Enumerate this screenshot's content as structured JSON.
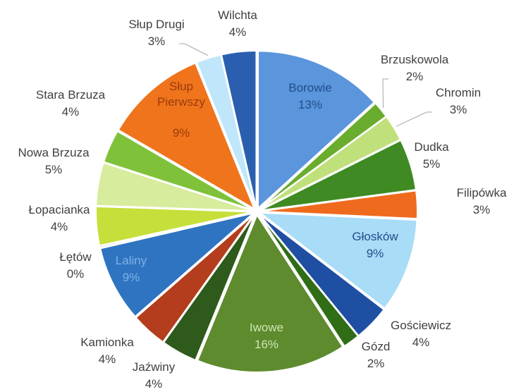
{
  "chart_data": {
    "type": "pie",
    "title": "",
    "slices": [
      {
        "name": "Borowie",
        "percent_label": "13%",
        "value": 13,
        "color": "#5b95dc",
        "label_color": "#1f4e8c",
        "label_inside": true
      },
      {
        "name": "Brzuskowola",
        "percent_label": "2%",
        "value": 2,
        "color": "#6aac2e",
        "label_color": "#404040",
        "label_inside": false
      },
      {
        "name": "Chromin",
        "percent_label": "3%",
        "value": 3,
        "color": "#bfe07a",
        "label_color": "#404040",
        "label_inside": false
      },
      {
        "name": "Dudka",
        "percent_label": "5%",
        "value": 5,
        "color": "#3f8a23",
        "label_color": "#404040",
        "label_inside": false
      },
      {
        "name": "Filipówka",
        "percent_label": "3%",
        "value": 3,
        "color": "#f06a1e",
        "label_color": "#404040",
        "label_inside": false
      },
      {
        "name": "Głosków",
        "percent_label": "9%",
        "value": 9,
        "color": "#a9dcf7",
        "label_color": "#1f4e8c",
        "label_inside": true
      },
      {
        "name": "Gościewicz",
        "percent_label": "4%",
        "value": 4,
        "color": "#1f4fa3",
        "label_color": "#404040",
        "label_inside": false
      },
      {
        "name": "Gózd",
        "percent_label": "2%",
        "value": 2,
        "color": "#2f6d16",
        "label_color": "#404040",
        "label_inside": false
      },
      {
        "name": "Iwowe",
        "percent_label": "16%",
        "value": 16,
        "color": "#5d8b2e",
        "label_color": "#cfe6b0",
        "label_inside": true
      },
      {
        "name": "Jaźwiny",
        "percent_label": "4%",
        "value": 4,
        "color": "#2e5a1b",
        "label_color": "#404040",
        "label_inside": false
      },
      {
        "name": "Kamionka",
        "percent_label": "4%",
        "value": 4,
        "color": "#b33d1c",
        "label_color": "#404040",
        "label_inside": false
      },
      {
        "name": "Laliny",
        "percent_label": "9%",
        "value": 9,
        "color": "#2f74c0",
        "label_color": "#7fb2e8",
        "label_inside": true
      },
      {
        "name": "Łętów",
        "percent_label": "0%",
        "value": 0,
        "color": "#999999",
        "label_color": "#404040",
        "label_inside": false
      },
      {
        "name": "Łopacianka",
        "percent_label": "4%",
        "value": 4,
        "color": "#c6df3a",
        "label_color": "#404040",
        "label_inside": false
      },
      {
        "name": "Nowa Brzuza",
        "percent_label": "5%",
        "value": 5,
        "color": "#d7ec9c",
        "label_color": "#404040",
        "label_inside": false
      },
      {
        "name": "Stara Brzuza",
        "percent_label": "4%",
        "value": 4,
        "color": "#7fc23a",
        "label_color": "#404040",
        "label_inside": false
      },
      {
        "name": "Słup Pierwszy",
        "percent_label": "9%",
        "value": 9,
        "color": "#f0741c",
        "label_color": "#9a3b0c",
        "label_inside": true
      },
      {
        "name": "Słup Drugi",
        "percent_label": "3%",
        "value": 3,
        "color": "#bfe6fa",
        "label_color": "#404040",
        "label_inside": false
      },
      {
        "name": "Wilchta",
        "percent_label": "4%",
        "value": 4,
        "color": "#2a5fb0",
        "label_color": "#404040",
        "label_inside": false
      }
    ],
    "label_position": "outside with leader lines for small slices, inside for large slices"
  }
}
